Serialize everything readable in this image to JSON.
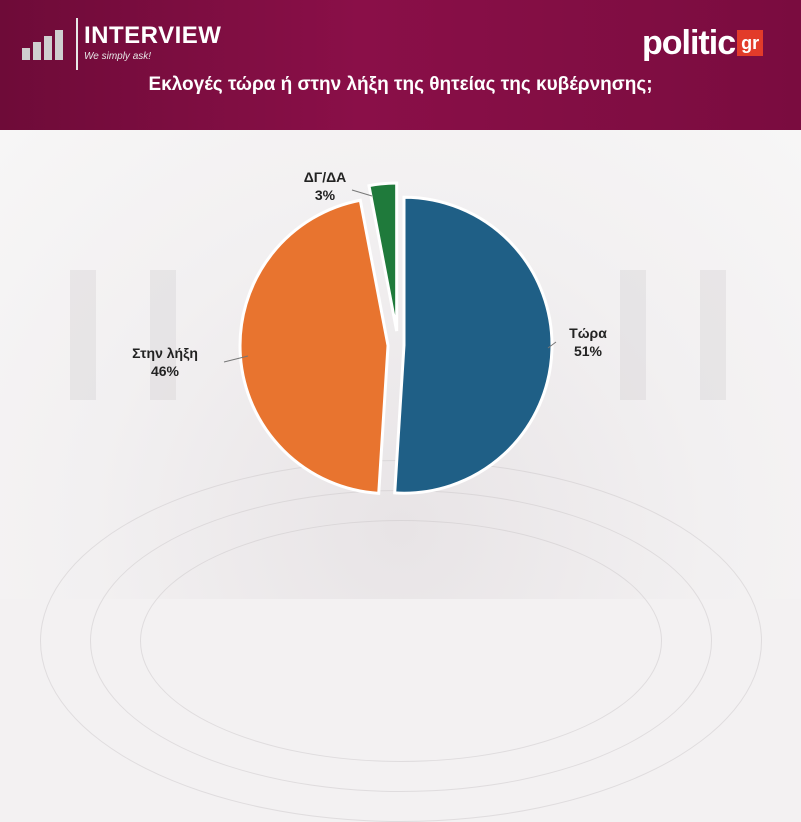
{
  "header": {
    "brand_name": "INTERVIEW",
    "brand_tagline": "We simply ask!",
    "partner_logo_word": "politic",
    "partner_logo_suffix": "gr",
    "title": "Εκλογές τώρα ή στην λήξη της θητείας της κυβέρνησης;"
  },
  "colors": {
    "header_bg": "#7f0d43",
    "partner_accent": "#e23b2a"
  },
  "chart_data": {
    "type": "pie",
    "title": "Εκλογές τώρα ή στην λήξη της θητείας της κυβέρνησης;",
    "slices": [
      {
        "label": "Τώρα",
        "value": 51,
        "display": "51%",
        "color": "#1f5f86"
      },
      {
        "label": "Στην λήξη",
        "value": 46,
        "display": "46%",
        "color": "#e8742f"
      },
      {
        "label": "ΔΓ/ΔΑ",
        "value": 3,
        "display": "3%",
        "color": "#1f7a3b"
      }
    ]
  }
}
